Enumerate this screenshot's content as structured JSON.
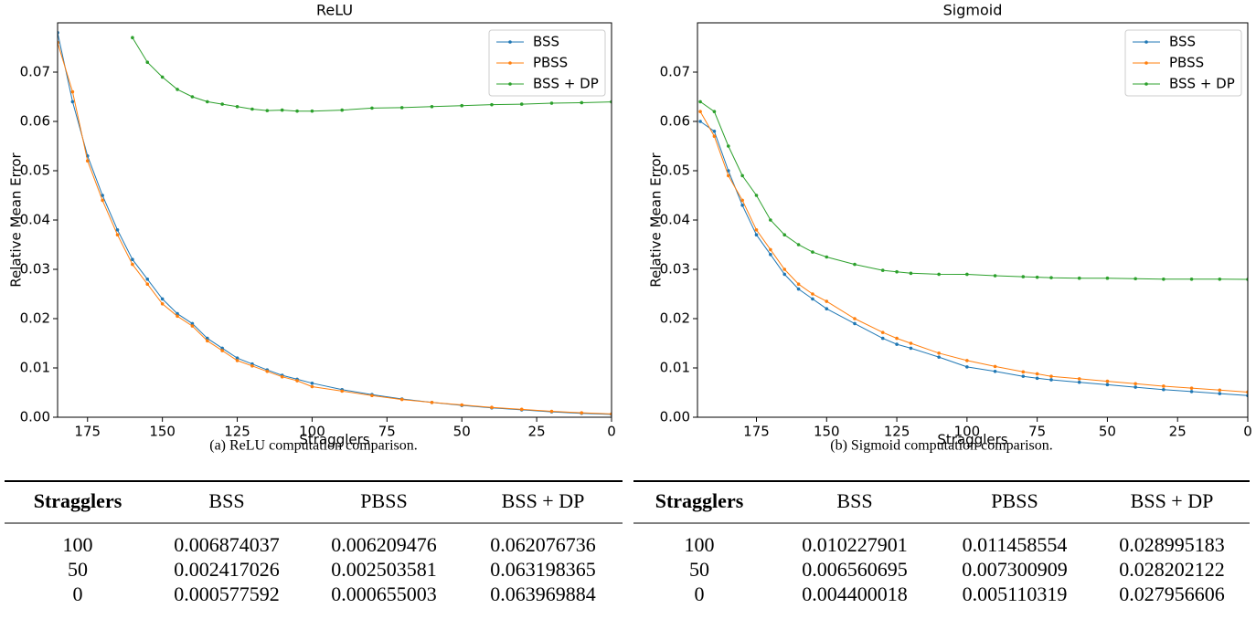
{
  "chart_data": [
    {
      "type": "line",
      "title": "ReLU",
      "xlabel": "Stragglers",
      "ylabel": "Relative Mean Error",
      "caption": "(a) ReLU computation comparison.",
      "x": [
        185,
        180,
        175,
        170,
        165,
        160,
        155,
        150,
        145,
        140,
        135,
        130,
        125,
        120,
        115,
        110,
        105,
        100,
        90,
        80,
        70,
        60,
        50,
        40,
        30,
        20,
        10,
        0
      ],
      "xlim": [
        185,
        0
      ],
      "xticks": [
        175,
        150,
        125,
        100,
        75,
        50,
        25,
        0
      ],
      "ylim": [
        0,
        0.08
      ],
      "yticks": [
        {
          "value": 0,
          "label": "0.00"
        },
        0.01,
        0.02,
        0.03,
        0.04,
        0.05,
        0.06,
        0.07
      ],
      "legend": "upper right",
      "series": [
        {
          "name": "BSS",
          "color": "#1f77b4",
          "values": [
            0.078,
            0.064,
            0.053,
            0.045,
            0.038,
            0.032,
            0.028,
            0.024,
            0.021,
            0.019,
            0.016,
            0.014,
            0.012,
            0.0108,
            0.0096,
            0.0085,
            0.0077,
            0.0069,
            0.0056,
            0.0046,
            0.0037,
            0.003,
            0.0024,
            0.0019,
            0.0015,
            0.0011,
            0.0008,
            0.00058
          ]
        },
        {
          "name": "PBSS",
          "color": "#ff7f0e",
          "values": [
            0.076,
            0.066,
            0.052,
            0.044,
            0.037,
            0.031,
            0.027,
            0.023,
            0.0205,
            0.0185,
            0.0155,
            0.0135,
            0.0115,
            0.0104,
            0.0093,
            0.0082,
            0.0074,
            0.0062,
            0.0053,
            0.0044,
            0.0036,
            0.003,
            0.0025,
            0.002,
            0.0016,
            0.0012,
            0.0009,
            0.00066
          ]
        },
        {
          "name": "BSS + DP",
          "color": "#2ca02c",
          "values": [
            null,
            null,
            null,
            null,
            null,
            0.077,
            0.072,
            0.069,
            0.0665,
            0.065,
            0.064,
            0.0635,
            0.063,
            0.0625,
            0.0622,
            0.0623,
            0.0621,
            0.0621,
            0.0623,
            0.0627,
            0.0628,
            0.063,
            0.0632,
            0.0634,
            0.0635,
            0.0637,
            0.0638,
            0.06397
          ]
        }
      ]
    },
    {
      "type": "line",
      "title": "Sigmoid",
      "xlabel": "Stragglers",
      "ylabel": "Relative Mean Error",
      "caption": "(b) Sigmoid computation comparison.",
      "x": [
        195,
        190,
        185,
        180,
        175,
        170,
        165,
        160,
        155,
        150,
        140,
        130,
        125,
        120,
        110,
        100,
        90,
        80,
        75,
        70,
        60,
        50,
        40,
        30,
        20,
        10,
        0
      ],
      "xlim": [
        196,
        0
      ],
      "xticks": [
        175,
        150,
        125,
        100,
        75,
        50,
        25,
        0
      ],
      "ylim": [
        0,
        0.08
      ],
      "yticks": [
        {
          "value": 0,
          "label": "0.00"
        },
        0.01,
        0.02,
        0.03,
        0.04,
        0.05,
        0.06,
        0.07
      ],
      "legend": "upper right",
      "series": [
        {
          "name": "BSS",
          "color": "#1f77b4",
          "values": [
            0.06,
            0.058,
            0.05,
            0.043,
            0.037,
            0.033,
            0.029,
            0.026,
            0.024,
            0.022,
            0.019,
            0.016,
            0.0148,
            0.014,
            0.0122,
            0.0102,
            0.0093,
            0.0083,
            0.0079,
            0.0076,
            0.0071,
            0.0066,
            0.0061,
            0.0056,
            0.0052,
            0.0048,
            0.0044
          ]
        },
        {
          "name": "PBSS",
          "color": "#ff7f0e",
          "values": [
            0.062,
            0.057,
            0.049,
            0.044,
            0.038,
            0.034,
            0.03,
            0.027,
            0.025,
            0.0235,
            0.02,
            0.0172,
            0.016,
            0.015,
            0.013,
            0.0115,
            0.0103,
            0.0092,
            0.0088,
            0.0083,
            0.0078,
            0.0073,
            0.0068,
            0.0063,
            0.0059,
            0.0055,
            0.0051
          ]
        },
        {
          "name": "BSS + DP",
          "color": "#2ca02c",
          "values": [
            0.064,
            0.062,
            0.055,
            0.049,
            0.045,
            0.04,
            0.037,
            0.035,
            0.0335,
            0.0325,
            0.031,
            0.0298,
            0.0295,
            0.0292,
            0.029,
            0.02899,
            0.0287,
            0.0285,
            0.0284,
            0.0283,
            0.0282,
            0.0282,
            0.0281,
            0.028,
            0.028,
            0.028,
            0.02796
          ]
        }
      ]
    }
  ],
  "tables": [
    {
      "header": [
        "Stragglers",
        "BSS",
        "PBSS",
        "BSS + DP"
      ],
      "rows": [
        [
          "100",
          "0.006874037",
          "0.006209476",
          "0.062076736"
        ],
        [
          "50",
          "0.002417026",
          "0.002503581",
          "0.063198365"
        ],
        [
          "0",
          "0.000577592",
          "0.000655003",
          "0.063969884"
        ]
      ]
    },
    {
      "header": [
        "Stragglers",
        "BSS",
        "PBSS",
        "BSS + DP"
      ],
      "rows": [
        [
          "100",
          "0.010227901",
          "0.011458554",
          "0.028995183"
        ],
        [
          "50",
          "0.006560695",
          "0.007300909",
          "0.028202122"
        ],
        [
          "0",
          "0.004400018",
          "0.005110319",
          "0.027956606"
        ]
      ]
    }
  ]
}
